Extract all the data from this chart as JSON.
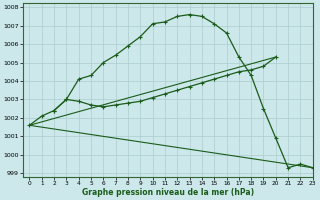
{
  "xlabel": "Graphe pression niveau de la mer (hPa)",
  "xlim": [
    -0.5,
    23
  ],
  "ylim": [
    998.8,
    1008.2
  ],
  "yticks": [
    999,
    1000,
    1001,
    1002,
    1003,
    1004,
    1005,
    1006,
    1007,
    1008
  ],
  "xticks": [
    0,
    1,
    2,
    3,
    4,
    5,
    6,
    7,
    8,
    9,
    10,
    11,
    12,
    13,
    14,
    15,
    16,
    17,
    18,
    19,
    20,
    21,
    22,
    23
  ],
  "bg_color": "#cce8ea",
  "grid_color": "#aacccc",
  "line_color": "#1a5c1a",
  "line1_x": [
    0,
    1,
    2,
    3,
    4,
    5,
    6,
    7,
    8,
    9,
    10,
    11,
    12,
    13,
    14,
    15,
    16,
    17,
    18,
    19,
    20,
    21,
    22,
    23
  ],
  "line1_y": [
    1001.6,
    1002.1,
    1002.4,
    1003.0,
    1004.1,
    1004.3,
    1005.0,
    1005.4,
    1005.9,
    1006.4,
    1007.1,
    1007.2,
    1007.5,
    1007.6,
    1007.5,
    1007.1,
    1006.6,
    1005.3,
    1004.3,
    1002.5,
    1000.9,
    999.3,
    999.5,
    999.3
  ],
  "line2_x": [
    2,
    3,
    4,
    5,
    6,
    7,
    8,
    9,
    10,
    11,
    12,
    13,
    14,
    15,
    16,
    17,
    18,
    19,
    20
  ],
  "line2_y": [
    1002.4,
    1003.0,
    1002.9,
    1002.7,
    1002.6,
    1002.7,
    1002.8,
    1002.9,
    1003.1,
    1003.3,
    1003.5,
    1003.7,
    1003.9,
    1004.1,
    1004.3,
    1004.5,
    1004.6,
    1004.8,
    1005.3
  ],
  "line3_x": [
    0,
    23
  ],
  "line3_y": [
    1001.6,
    999.3
  ],
  "line4_x": [
    0,
    20
  ],
  "line4_y": [
    1001.6,
    1005.3
  ]
}
